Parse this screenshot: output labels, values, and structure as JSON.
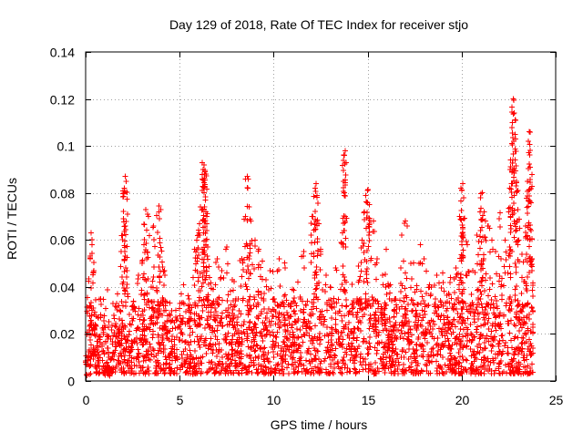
{
  "chart_data": {
    "type": "scatter",
    "title": "Day 129 of 2018, Rate Of TEC Index for receiver stjo",
    "xlabel": "GPS time / hours",
    "ylabel": "ROTI / TECUs",
    "xlim": [
      0,
      25
    ],
    "ylim": [
      0,
      0.14
    ],
    "x_ticks": [
      0,
      5,
      10,
      15,
      20,
      25
    ],
    "x_tick_labels": [
      "0",
      "5",
      "10",
      "15",
      "20",
      "25"
    ],
    "y_ticks": [
      0,
      0.02,
      0.04,
      0.06,
      0.08,
      0.1,
      0.12,
      0.14
    ],
    "y_tick_labels": [
      "0",
      "0.02",
      "0.04",
      "0.06",
      "0.08",
      "0.1",
      "0.12",
      "0.14"
    ],
    "grid": true,
    "marker": "plus",
    "series": [
      {
        "name": "ROTI",
        "color": "#ff0000",
        "points": [
          [
            0.1,
            0.009
          ],
          [
            0.2,
            0.031
          ],
          [
            0.25,
            0.052
          ],
          [
            0.3,
            0.063
          ],
          [
            0.35,
            0.058
          ],
          [
            0.4,
            0.046
          ],
          [
            0.5,
            0.024
          ],
          [
            0.6,
            0.015
          ],
          [
            0.8,
            0.035
          ],
          [
            1.0,
            0.012
          ],
          [
            1.2,
            0.006
          ],
          [
            1.5,
            0.028
          ],
          [
            1.8,
            0.02
          ],
          [
            1.9,
            0.055
          ],
          [
            2.0,
            0.069
          ],
          [
            2.05,
            0.082
          ],
          [
            2.1,
            0.087
          ],
          [
            2.15,
            0.085
          ],
          [
            2.5,
            0.032
          ],
          [
            2.8,
            0.045
          ],
          [
            3.0,
            0.05
          ],
          [
            3.1,
            0.058
          ],
          [
            3.2,
            0.073
          ],
          [
            3.3,
            0.071
          ],
          [
            3.5,
            0.04
          ],
          [
            3.6,
            0.066
          ],
          [
            3.8,
            0.038
          ],
          [
            3.9,
            0.072
          ],
          [
            4.0,
            0.073
          ],
          [
            4.2,
            0.047
          ],
          [
            4.5,
            0.028
          ],
          [
            4.8,
            0.03
          ],
          [
            5.2,
            0.041
          ],
          [
            5.5,
            0.035
          ],
          [
            5.8,
            0.056
          ],
          [
            5.9,
            0.06
          ],
          [
            6.0,
            0.062
          ],
          [
            6.1,
            0.074
          ],
          [
            6.2,
            0.081
          ],
          [
            6.25,
            0.09
          ],
          [
            6.3,
            0.092
          ],
          [
            6.35,
            0.089
          ],
          [
            6.4,
            0.088
          ],
          [
            6.45,
            0.07
          ],
          [
            6.5,
            0.057
          ],
          [
            6.6,
            0.044
          ],
          [
            6.8,
            0.033
          ],
          [
            7.0,
            0.052
          ],
          [
            7.2,
            0.044
          ],
          [
            7.5,
            0.057
          ],
          [
            7.8,
            0.043
          ],
          [
            8.0,
            0.035
          ],
          [
            8.3,
            0.052
          ],
          [
            8.5,
            0.07
          ],
          [
            8.6,
            0.087
          ],
          [
            8.7,
            0.074
          ],
          [
            8.8,
            0.068
          ],
          [
            9.0,
            0.06
          ],
          [
            9.2,
            0.056
          ],
          [
            9.4,
            0.051
          ],
          [
            9.6,
            0.043
          ],
          [
            10.0,
            0.035
          ],
          [
            10.3,
            0.052
          ],
          [
            10.6,
            0.048
          ],
          [
            11.0,
            0.039
          ],
          [
            11.3,
            0.042
          ],
          [
            11.6,
            0.055
          ],
          [
            12.0,
            0.062
          ],
          [
            12.1,
            0.07
          ],
          [
            12.2,
            0.082
          ],
          [
            12.25,
            0.084
          ],
          [
            12.3,
            0.079
          ],
          [
            12.5,
            0.055
          ],
          [
            12.8,
            0.045
          ],
          [
            13.0,
            0.04
          ],
          [
            13.3,
            0.048
          ],
          [
            13.6,
            0.059
          ],
          [
            13.7,
            0.085
          ],
          [
            13.75,
            0.096
          ],
          [
            13.8,
            0.098
          ],
          [
            14.2,
            0.033
          ],
          [
            14.5,
            0.042
          ],
          [
            14.7,
            0.06
          ],
          [
            14.9,
            0.079
          ],
          [
            15.0,
            0.081
          ],
          [
            15.1,
            0.075
          ],
          [
            15.3,
            0.068
          ],
          [
            15.5,
            0.052
          ],
          [
            15.8,
            0.045
          ],
          [
            16.0,
            0.056
          ],
          [
            16.2,
            0.041
          ],
          [
            16.5,
            0.035
          ],
          [
            16.8,
            0.062
          ],
          [
            17.0,
            0.068
          ],
          [
            17.1,
            0.066
          ],
          [
            17.3,
            0.05
          ],
          [
            17.6,
            0.039
          ],
          [
            17.8,
            0.058
          ],
          [
            18.0,
            0.052
          ],
          [
            18.3,
            0.041
          ],
          [
            18.6,
            0.035
          ],
          [
            19.0,
            0.046
          ],
          [
            19.4,
            0.044
          ],
          [
            19.7,
            0.048
          ],
          [
            19.9,
            0.07
          ],
          [
            20.0,
            0.081
          ],
          [
            20.05,
            0.084
          ],
          [
            20.1,
            0.078
          ],
          [
            20.3,
            0.058
          ],
          [
            20.6,
            0.047
          ],
          [
            20.8,
            0.062
          ],
          [
            21.0,
            0.078
          ],
          [
            21.1,
            0.08
          ],
          [
            21.2,
            0.072
          ],
          [
            21.4,
            0.066
          ],
          [
            21.6,
            0.06
          ],
          [
            21.8,
            0.055
          ],
          [
            22.0,
            0.069
          ],
          [
            22.1,
            0.052
          ],
          [
            22.3,
            0.06
          ],
          [
            22.5,
            0.072
          ],
          [
            22.6,
            0.094
          ],
          [
            22.7,
            0.11
          ],
          [
            22.75,
            0.12
          ],
          [
            22.8,
            0.114
          ],
          [
            22.85,
            0.105
          ],
          [
            22.9,
            0.083
          ],
          [
            23.0,
            0.073
          ],
          [
            23.2,
            0.054
          ],
          [
            23.4,
            0.066
          ],
          [
            23.5,
            0.085
          ],
          [
            23.55,
            0.102
          ],
          [
            23.6,
            0.106
          ],
          [
            23.65,
            0.091
          ],
          [
            23.7,
            0.064
          ],
          [
            23.75,
            0.052
          ],
          [
            23.8,
            0.036
          ]
        ]
      }
    ],
    "background_cloud": {
      "x_range": [
        0,
        23.8
      ],
      "typical_range": [
        0.003,
        0.035
      ],
      "density": "dense"
    }
  }
}
